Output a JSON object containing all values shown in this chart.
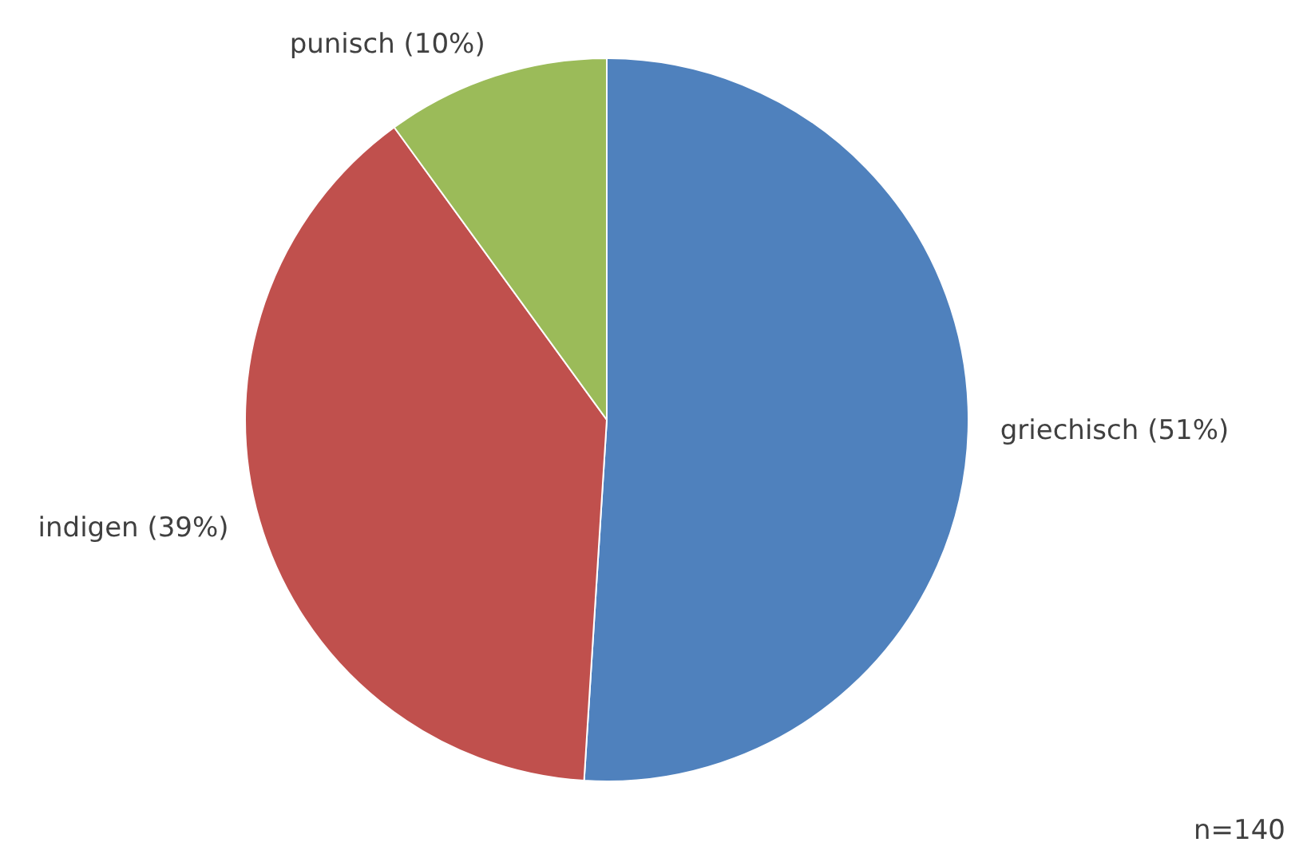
{
  "chart_data": {
    "type": "pie",
    "categories": [
      "griechisch",
      "indigen",
      "punisch"
    ],
    "values": [
      51,
      39,
      10
    ],
    "value_labels": [
      "(51%)",
      "(39%)",
      "(10%)"
    ],
    "colors": [
      "#4f81bd",
      "#c0504d",
      "#9bbb59"
    ],
    "legend": false,
    "annotations": [
      "n=140"
    ]
  }
}
